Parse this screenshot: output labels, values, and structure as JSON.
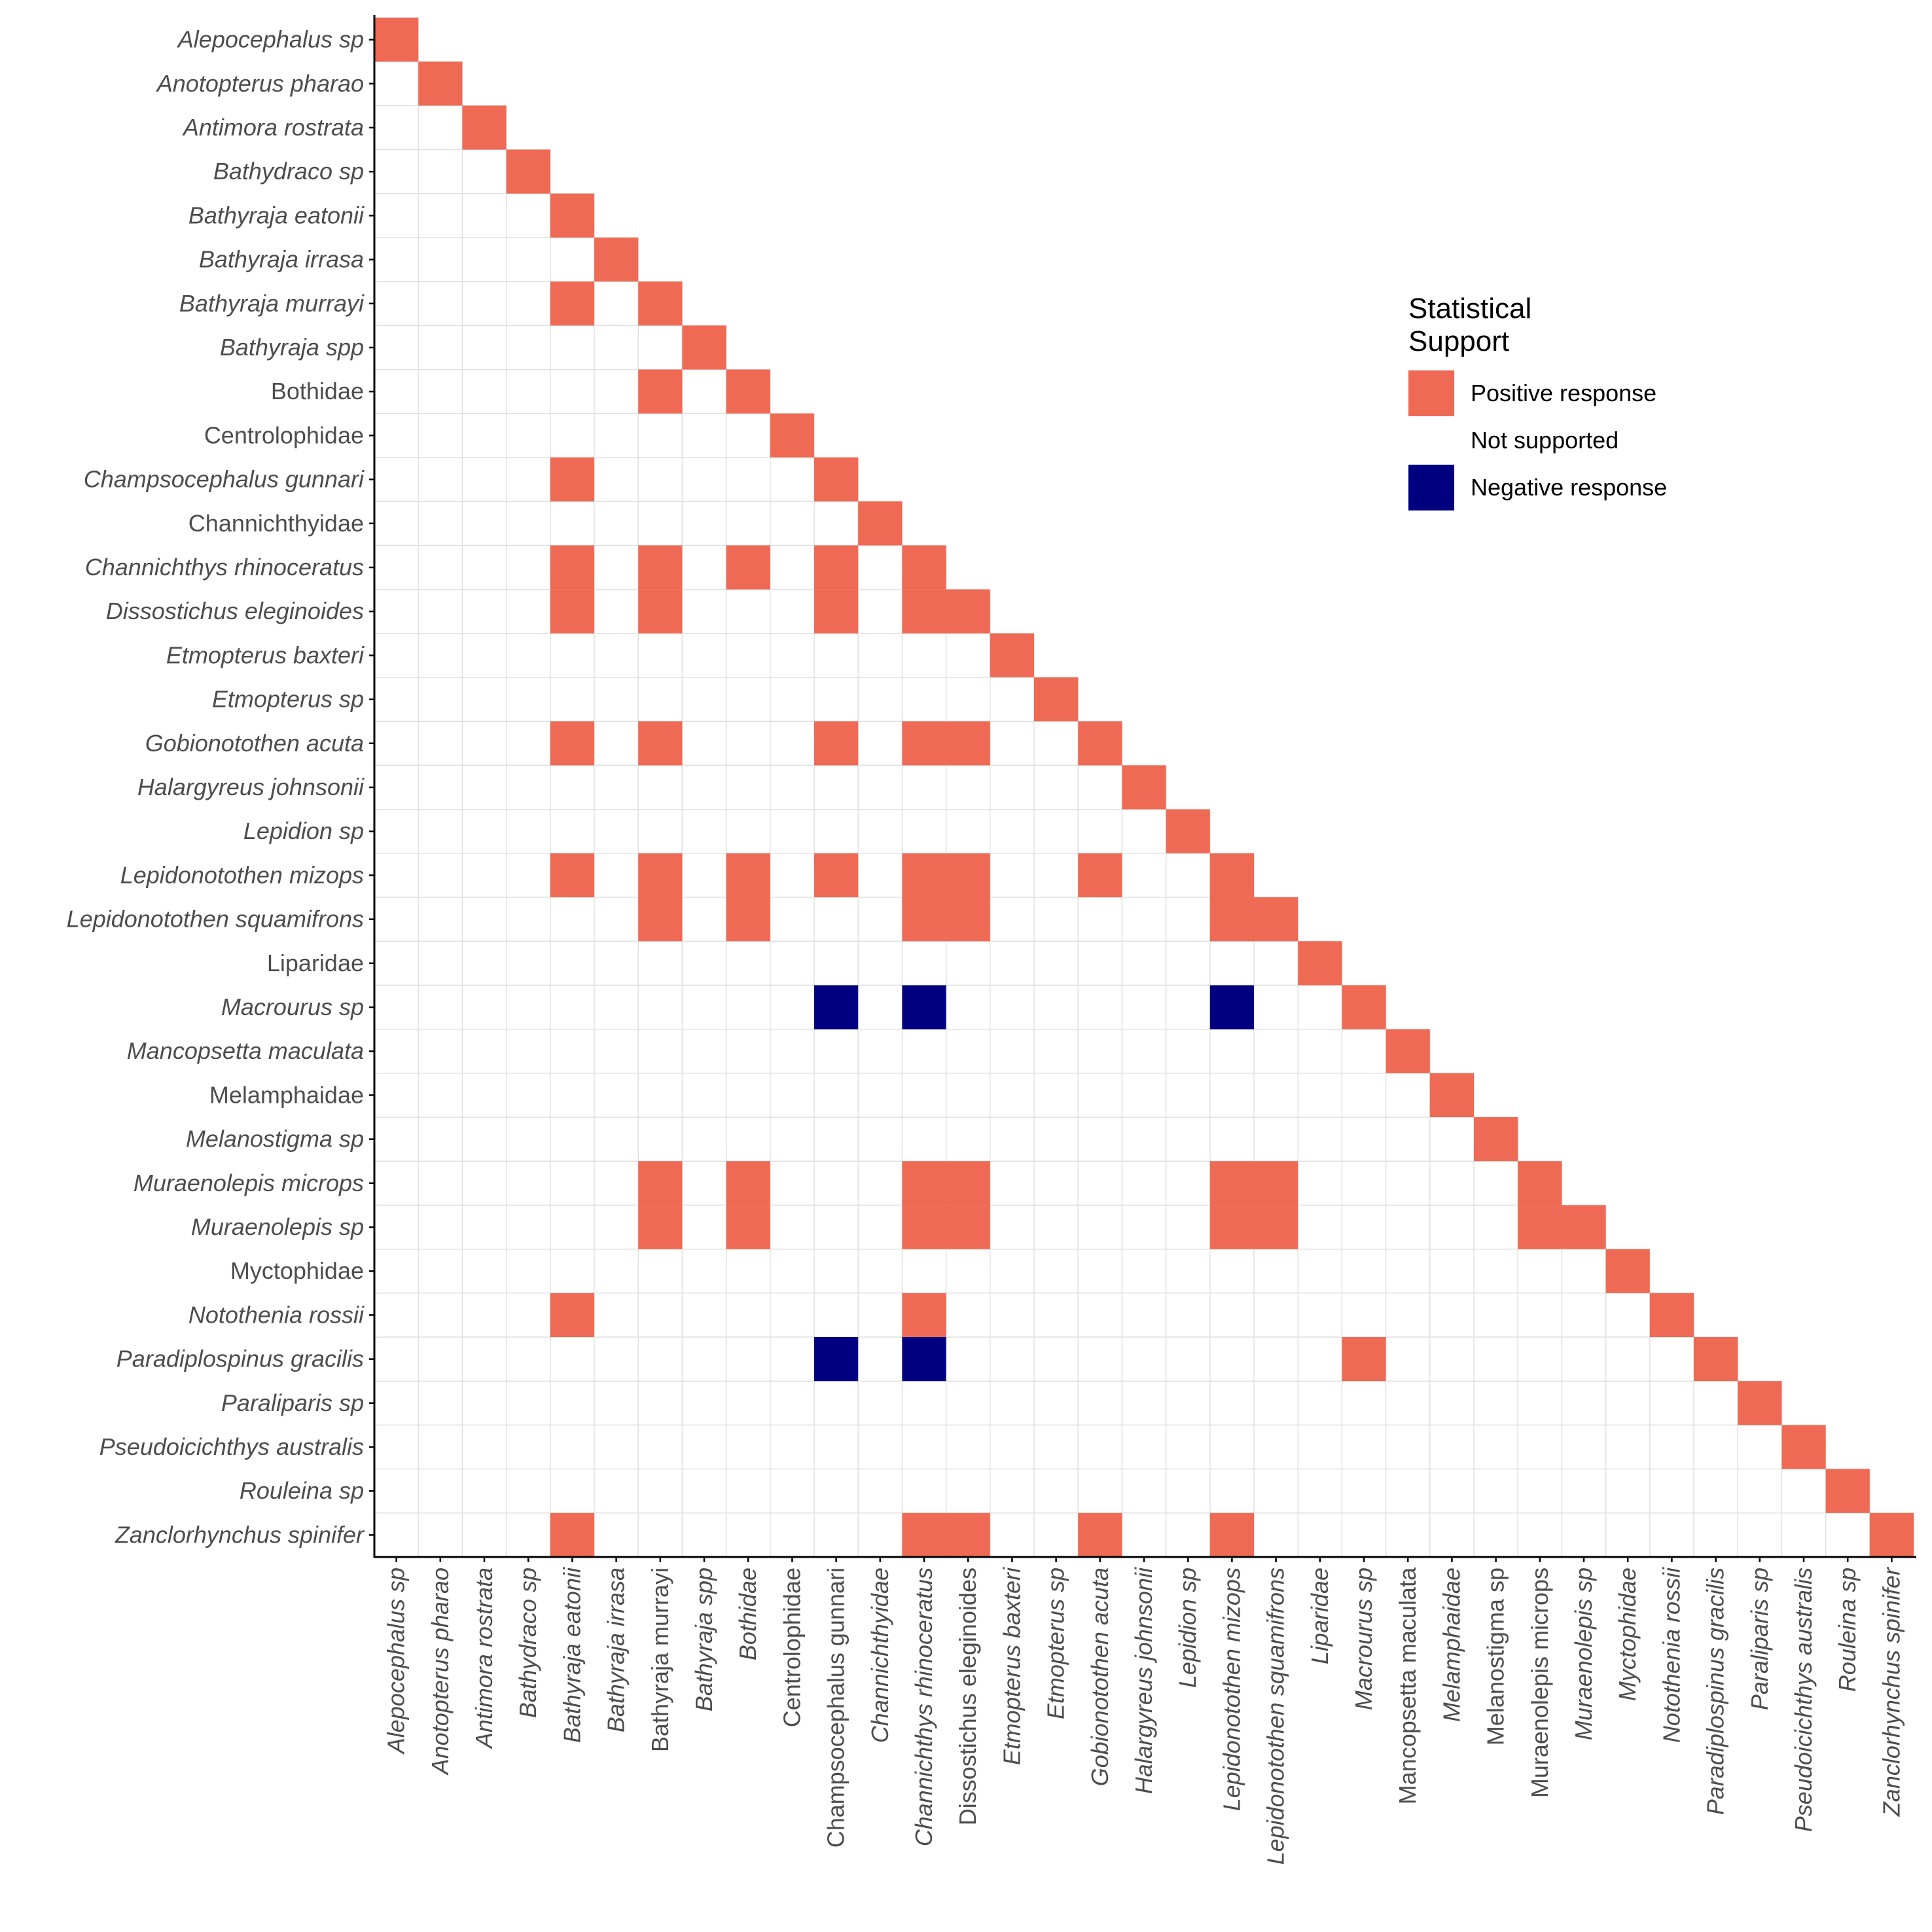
{
  "chart_data": {
    "type": "heatmap",
    "species": [
      {
        "name": "Alepocephalus sp",
        "italic": true
      },
      {
        "name": "Anotopterus pharao",
        "italic": true
      },
      {
        "name": "Antimora rostrata",
        "italic": true
      },
      {
        "name": "Bathydraco sp",
        "italic": true
      },
      {
        "name": "Bathyraja eatonii",
        "italic": true
      },
      {
        "name": "Bathyraja irrasa",
        "italic": true
      },
      {
        "name": "Bathyraja murrayi",
        "italic": true,
        "x_italic": false
      },
      {
        "name": "Bathyraja spp",
        "italic": true
      },
      {
        "name": "Bothidae",
        "italic": false,
        "x_italic": true
      },
      {
        "name": "Centrolophidae",
        "italic": false
      },
      {
        "name": "Champsocephalus gunnari",
        "italic": true,
        "x_italic": false
      },
      {
        "name": "Channichthyidae",
        "italic": false,
        "x_italic": true
      },
      {
        "name": "Channichthys rhinoceratus",
        "italic": true
      },
      {
        "name": "Dissostichus eleginoides",
        "italic": true,
        "x_italic": false
      },
      {
        "name": "Etmopterus baxteri",
        "italic": true
      },
      {
        "name": "Etmopterus sp",
        "italic": true
      },
      {
        "name": "Gobionotothen acuta",
        "italic": true
      },
      {
        "name": "Halargyreus johnsonii",
        "italic": true
      },
      {
        "name": "Lepidion sp",
        "italic": true
      },
      {
        "name": "Lepidonotothen mizops",
        "italic": true
      },
      {
        "name": "Lepidonotothen squamifrons",
        "italic": true
      },
      {
        "name": "Liparidae",
        "italic": false,
        "x_italic": true
      },
      {
        "name": "Macrourus sp",
        "italic": true
      },
      {
        "name": "Mancopsetta maculata",
        "italic": true,
        "x_italic": false
      },
      {
        "name": "Melamphaidae",
        "italic": false,
        "x_italic": true
      },
      {
        "name": "Melanostigma sp",
        "italic": true,
        "x_italic": false
      },
      {
        "name": "Muraenolepis microps",
        "italic": true,
        "x_italic": false
      },
      {
        "name": "Muraenolepis sp",
        "italic": true
      },
      {
        "name": "Myctophidae",
        "italic": false,
        "x_italic": true
      },
      {
        "name": "Notothenia rossii",
        "italic": true
      },
      {
        "name": "Paradiplospinus gracilis",
        "italic": true
      },
      {
        "name": "Paraliparis sp",
        "italic": true
      },
      {
        "name": "Pseudoicichthys australis",
        "italic": true
      },
      {
        "name": "Rouleina sp",
        "italic": true
      },
      {
        "name": "Zanclorhynchus spinifer",
        "italic": true
      }
    ],
    "levels": [
      {
        "key": "positive",
        "label": "Positive response",
        "color": "#EF6A54"
      },
      {
        "key": "none",
        "label": "Not supported",
        "color": "#FFFFFF"
      },
      {
        "key": "negative",
        "label": "Negative response",
        "color": "#000080"
      }
    ],
    "cells": [
      {
        "row": "Alepocephalus sp",
        "col": "Alepocephalus sp",
        "value": "positive"
      },
      {
        "row": "Anotopterus pharao",
        "col": "Anotopterus pharao",
        "value": "positive"
      },
      {
        "row": "Antimora rostrata",
        "col": "Antimora rostrata",
        "value": "positive"
      },
      {
        "row": "Bathydraco sp",
        "col": "Bathydraco sp",
        "value": "positive"
      },
      {
        "row": "Bathyraja eatonii",
        "col": "Bathyraja eatonii",
        "value": "positive"
      },
      {
        "row": "Bathyraja irrasa",
        "col": "Bathyraja irrasa",
        "value": "positive"
      },
      {
        "row": "Bathyraja murrayi",
        "col": "Bathyraja eatonii",
        "value": "positive"
      },
      {
        "row": "Bathyraja murrayi",
        "col": "Bathyraja murrayi",
        "value": "positive"
      },
      {
        "row": "Bathyraja spp",
        "col": "Bathyraja spp",
        "value": "positive"
      },
      {
        "row": "Bothidae",
        "col": "Bathyraja murrayi",
        "value": "positive"
      },
      {
        "row": "Bothidae",
        "col": "Bothidae",
        "value": "positive"
      },
      {
        "row": "Centrolophidae",
        "col": "Centrolophidae",
        "value": "positive"
      },
      {
        "row": "Champsocephalus gunnari",
        "col": "Bathyraja eatonii",
        "value": "positive"
      },
      {
        "row": "Champsocephalus gunnari",
        "col": "Champsocephalus gunnari",
        "value": "positive"
      },
      {
        "row": "Channichthyidae",
        "col": "Channichthyidae",
        "value": "positive"
      },
      {
        "row": "Channichthys rhinoceratus",
        "col": "Bathyraja eatonii",
        "value": "positive"
      },
      {
        "row": "Channichthys rhinoceratus",
        "col": "Bathyraja murrayi",
        "value": "positive"
      },
      {
        "row": "Channichthys rhinoceratus",
        "col": "Bothidae",
        "value": "positive"
      },
      {
        "row": "Channichthys rhinoceratus",
        "col": "Champsocephalus gunnari",
        "value": "positive"
      },
      {
        "row": "Channichthys rhinoceratus",
        "col": "Channichthys rhinoceratus",
        "value": "positive"
      },
      {
        "row": "Dissostichus eleginoides",
        "col": "Bathyraja eatonii",
        "value": "positive"
      },
      {
        "row": "Dissostichus eleginoides",
        "col": "Bathyraja murrayi",
        "value": "positive"
      },
      {
        "row": "Dissostichus eleginoides",
        "col": "Champsocephalus gunnari",
        "value": "positive"
      },
      {
        "row": "Dissostichus eleginoides",
        "col": "Channichthys rhinoceratus",
        "value": "positive"
      },
      {
        "row": "Dissostichus eleginoides",
        "col": "Dissostichus eleginoides",
        "value": "positive"
      },
      {
        "row": "Etmopterus baxteri",
        "col": "Etmopterus baxteri",
        "value": "positive"
      },
      {
        "row": "Etmopterus sp",
        "col": "Etmopterus sp",
        "value": "positive"
      },
      {
        "row": "Gobionotothen acuta",
        "col": "Bathyraja eatonii",
        "value": "positive"
      },
      {
        "row": "Gobionotothen acuta",
        "col": "Bathyraja murrayi",
        "value": "positive"
      },
      {
        "row": "Gobionotothen acuta",
        "col": "Champsocephalus gunnari",
        "value": "positive"
      },
      {
        "row": "Gobionotothen acuta",
        "col": "Channichthys rhinoceratus",
        "value": "positive"
      },
      {
        "row": "Gobionotothen acuta",
        "col": "Dissostichus eleginoides",
        "value": "positive"
      },
      {
        "row": "Gobionotothen acuta",
        "col": "Gobionotothen acuta",
        "value": "positive"
      },
      {
        "row": "Halargyreus johnsonii",
        "col": "Halargyreus johnsonii",
        "value": "positive"
      },
      {
        "row": "Lepidion sp",
        "col": "Lepidion sp",
        "value": "positive"
      },
      {
        "row": "Lepidonotothen mizops",
        "col": "Bathyraja eatonii",
        "value": "positive"
      },
      {
        "row": "Lepidonotothen mizops",
        "col": "Bathyraja murrayi",
        "value": "positive"
      },
      {
        "row": "Lepidonotothen mizops",
        "col": "Bothidae",
        "value": "positive"
      },
      {
        "row": "Lepidonotothen mizops",
        "col": "Champsocephalus gunnari",
        "value": "positive"
      },
      {
        "row": "Lepidonotothen mizops",
        "col": "Channichthys rhinoceratus",
        "value": "positive"
      },
      {
        "row": "Lepidonotothen mizops",
        "col": "Dissostichus eleginoides",
        "value": "positive"
      },
      {
        "row": "Lepidonotothen mizops",
        "col": "Gobionotothen acuta",
        "value": "positive"
      },
      {
        "row": "Lepidonotothen mizops",
        "col": "Lepidonotothen mizops",
        "value": "positive"
      },
      {
        "row": "Lepidonotothen squamifrons",
        "col": "Bathyraja murrayi",
        "value": "positive"
      },
      {
        "row": "Lepidonotothen squamifrons",
        "col": "Bothidae",
        "value": "positive"
      },
      {
        "row": "Lepidonotothen squamifrons",
        "col": "Channichthys rhinoceratus",
        "value": "positive"
      },
      {
        "row": "Lepidonotothen squamifrons",
        "col": "Dissostichus eleginoides",
        "value": "positive"
      },
      {
        "row": "Lepidonotothen squamifrons",
        "col": "Lepidonotothen mizops",
        "value": "positive"
      },
      {
        "row": "Lepidonotothen squamifrons",
        "col": "Lepidonotothen squamifrons",
        "value": "positive"
      },
      {
        "row": "Liparidae",
        "col": "Liparidae",
        "value": "positive"
      },
      {
        "row": "Macrourus sp",
        "col": "Champsocephalus gunnari",
        "value": "negative"
      },
      {
        "row": "Macrourus sp",
        "col": "Channichthys rhinoceratus",
        "value": "negative"
      },
      {
        "row": "Macrourus sp",
        "col": "Lepidonotothen mizops",
        "value": "negative"
      },
      {
        "row": "Macrourus sp",
        "col": "Macrourus sp",
        "value": "positive"
      },
      {
        "row": "Mancopsetta maculata",
        "col": "Mancopsetta maculata",
        "value": "positive"
      },
      {
        "row": "Melamphaidae",
        "col": "Melamphaidae",
        "value": "positive"
      },
      {
        "row": "Melanostigma sp",
        "col": "Melanostigma sp",
        "value": "positive"
      },
      {
        "row": "Muraenolepis microps",
        "col": "Bathyraja murrayi",
        "value": "positive"
      },
      {
        "row": "Muraenolepis microps",
        "col": "Bothidae",
        "value": "positive"
      },
      {
        "row": "Muraenolepis microps",
        "col": "Channichthys rhinoceratus",
        "value": "positive"
      },
      {
        "row": "Muraenolepis microps",
        "col": "Dissostichus eleginoides",
        "value": "positive"
      },
      {
        "row": "Muraenolepis microps",
        "col": "Lepidonotothen mizops",
        "value": "positive"
      },
      {
        "row": "Muraenolepis microps",
        "col": "Lepidonotothen squamifrons",
        "value": "positive"
      },
      {
        "row": "Muraenolepis microps",
        "col": "Muraenolepis microps",
        "value": "positive"
      },
      {
        "row": "Muraenolepis sp",
        "col": "Bathyraja murrayi",
        "value": "positive"
      },
      {
        "row": "Muraenolepis sp",
        "col": "Bothidae",
        "value": "positive"
      },
      {
        "row": "Muraenolepis sp",
        "col": "Channichthys rhinoceratus",
        "value": "positive"
      },
      {
        "row": "Muraenolepis sp",
        "col": "Dissostichus eleginoides",
        "value": "positive"
      },
      {
        "row": "Muraenolepis sp",
        "col": "Lepidonotothen mizops",
        "value": "positive"
      },
      {
        "row": "Muraenolepis sp",
        "col": "Lepidonotothen squamifrons",
        "value": "positive"
      },
      {
        "row": "Muraenolepis sp",
        "col": "Muraenolepis microps",
        "value": "positive"
      },
      {
        "row": "Muraenolepis sp",
        "col": "Muraenolepis sp",
        "value": "positive"
      },
      {
        "row": "Myctophidae",
        "col": "Myctophidae",
        "value": "positive"
      },
      {
        "row": "Notothenia rossii",
        "col": "Bathyraja eatonii",
        "value": "positive"
      },
      {
        "row": "Notothenia rossii",
        "col": "Channichthys rhinoceratus",
        "value": "positive"
      },
      {
        "row": "Notothenia rossii",
        "col": "Notothenia rossii",
        "value": "positive"
      },
      {
        "row": "Paradiplospinus gracilis",
        "col": "Champsocephalus gunnari",
        "value": "negative"
      },
      {
        "row": "Paradiplospinus gracilis",
        "col": "Channichthys rhinoceratus",
        "value": "negative"
      },
      {
        "row": "Paradiplospinus gracilis",
        "col": "Macrourus sp",
        "value": "positive"
      },
      {
        "row": "Paradiplospinus gracilis",
        "col": "Paradiplospinus gracilis",
        "value": "positive"
      },
      {
        "row": "Paraliparis sp",
        "col": "Paraliparis sp",
        "value": "positive"
      },
      {
        "row": "Pseudoicichthys australis",
        "col": "Pseudoicichthys australis",
        "value": "positive"
      },
      {
        "row": "Rouleina sp",
        "col": "Rouleina sp",
        "value": "positive"
      },
      {
        "row": "Zanclorhynchus spinifer",
        "col": "Bathyraja eatonii",
        "value": "positive"
      },
      {
        "row": "Zanclorhynchus spinifer",
        "col": "Channichthys rhinoceratus",
        "value": "positive"
      },
      {
        "row": "Zanclorhynchus spinifer",
        "col": "Dissostichus eleginoides",
        "value": "positive"
      },
      {
        "row": "Zanclorhynchus spinifer",
        "col": "Gobionotothen acuta",
        "value": "positive"
      },
      {
        "row": "Zanclorhynchus spinifer",
        "col": "Lepidonotothen mizops",
        "value": "positive"
      },
      {
        "row": "Zanclorhynchus spinifer",
        "col": "Zanclorhynchus spinifer",
        "value": "positive"
      }
    ],
    "legend": {
      "title_lines": [
        "Statistical",
        "Support"
      ],
      "position": "right"
    },
    "grid": true,
    "grid_color": "#E0E0E0",
    "axis_color": "#000000",
    "tick_label_color": "#4D4D4D",
    "lower_triangle": true
  }
}
